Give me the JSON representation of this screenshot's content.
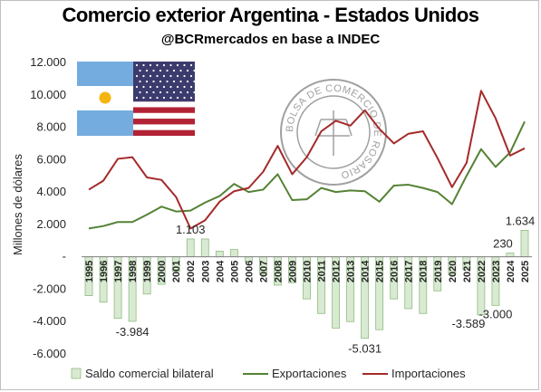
{
  "title": "Comercio exterior Argentina - Estados Unidos",
  "subtitle": "@BCRmercados en base a INDEC",
  "chart_data": {
    "type": "bar",
    "title": "Comercio exterior Argentina - Estados Unidos",
    "subtitle": "@BCRmercados en base a INDEC",
    "ylabel": "Millones de dólares",
    "xlabel": "",
    "ylim": [
      -6000,
      12000
    ],
    "yticks": [
      -6000,
      -4000,
      -2000,
      0,
      2000,
      4000,
      6000,
      8000,
      10000,
      12000
    ],
    "ytick_labels": [
      "-6.000",
      "-4.000",
      "-2.000",
      "-",
      "2.000",
      "4.000",
      "6.000",
      "8.000",
      "10.000",
      "12.000"
    ],
    "categories": [
      "1995",
      "1996",
      "1997",
      "1998",
      "1999",
      "2000",
      "2001",
      "2002",
      "2003",
      "2004",
      "2005",
      "2006",
      "2007",
      "2008",
      "2009",
      "2010",
      "2011",
      "2012",
      "2013",
      "2014",
      "2015",
      "2016",
      "2017",
      "2018",
      "2019",
      "2020",
      "2021",
      "2022",
      "2023",
      "2024",
      "2025"
    ],
    "series": [
      {
        "name": "Saldo comercial bilateral",
        "type": "bar",
        "color": "#d9ead3",
        "values": [
          -2400,
          -2800,
          -3800,
          -3984,
          -2300,
          -1700,
          -900,
          1103,
          1100,
          350,
          450,
          -300,
          -1100,
          -1750,
          -1600,
          -2600,
          -3500,
          -4400,
          -4000,
          -5031,
          -4500,
          -2600,
          -3200,
          -3500,
          -2100,
          -1100,
          -800,
          -3589,
          -3000,
          230,
          1634
        ]
      },
      {
        "name": "Exportaciones",
        "type": "line",
        "color": "#548235",
        "values": [
          1750,
          1900,
          2150,
          2150,
          2600,
          3100,
          2800,
          2850,
          3350,
          3750,
          4500,
          4000,
          4150,
          5100,
          3500,
          3550,
          4250,
          4000,
          4100,
          4050,
          3400,
          4400,
          4450,
          4250,
          4000,
          3250,
          5000,
          6650,
          5550,
          6450,
          8350
        ]
      },
      {
        "name": "Importaciones",
        "type": "line",
        "color": "#a52a2a",
        "values": [
          4150,
          4700,
          6050,
          6150,
          4900,
          4750,
          3700,
          1750,
          2250,
          3400,
          4050,
          4250,
          5250,
          6850,
          5100,
          6150,
          7750,
          8400,
          8100,
          9050,
          7900,
          7000,
          7600,
          7750,
          6100,
          4300,
          5800,
          10250,
          8550,
          6250,
          6700
        ]
      }
    ],
    "data_labels": [
      {
        "category": "1998",
        "series": "Saldo comercial bilateral",
        "text": "-3.984"
      },
      {
        "category": "2002",
        "series": "Saldo comercial bilateral",
        "text": "1.103"
      },
      {
        "category": "2014",
        "series": "Saldo comercial bilateral",
        "text": "-5.031"
      },
      {
        "category": "2022",
        "series": "Saldo comercial bilateral",
        "text": "-3.589"
      },
      {
        "category": "2023",
        "series": "Saldo comercial bilateral",
        "text": "-3.000"
      },
      {
        "category": "2024",
        "series": "Saldo comercial bilateral",
        "text": "230"
      },
      {
        "category": "2025",
        "series": "Saldo comercial bilateral",
        "text": "1.634"
      }
    ],
    "legend": {
      "placement": "bottom",
      "entries": [
        "Saldo comercial bilateral",
        "Exportaciones",
        "Importaciones"
      ]
    },
    "grid": false
  },
  "seal": {
    "text": "BOLSA DE COMERCIO DE ROSARIO"
  },
  "colors": {
    "flag_argentina_blue": "#74acdf",
    "flag_sun": "#f6b40e",
    "flag_us_blue": "#3c3b6e",
    "flag_us_red": "#b22234",
    "axis": "#7f7f7f",
    "bar_stroke": "#8fbc7f",
    "seal": "#a0a0a0"
  }
}
